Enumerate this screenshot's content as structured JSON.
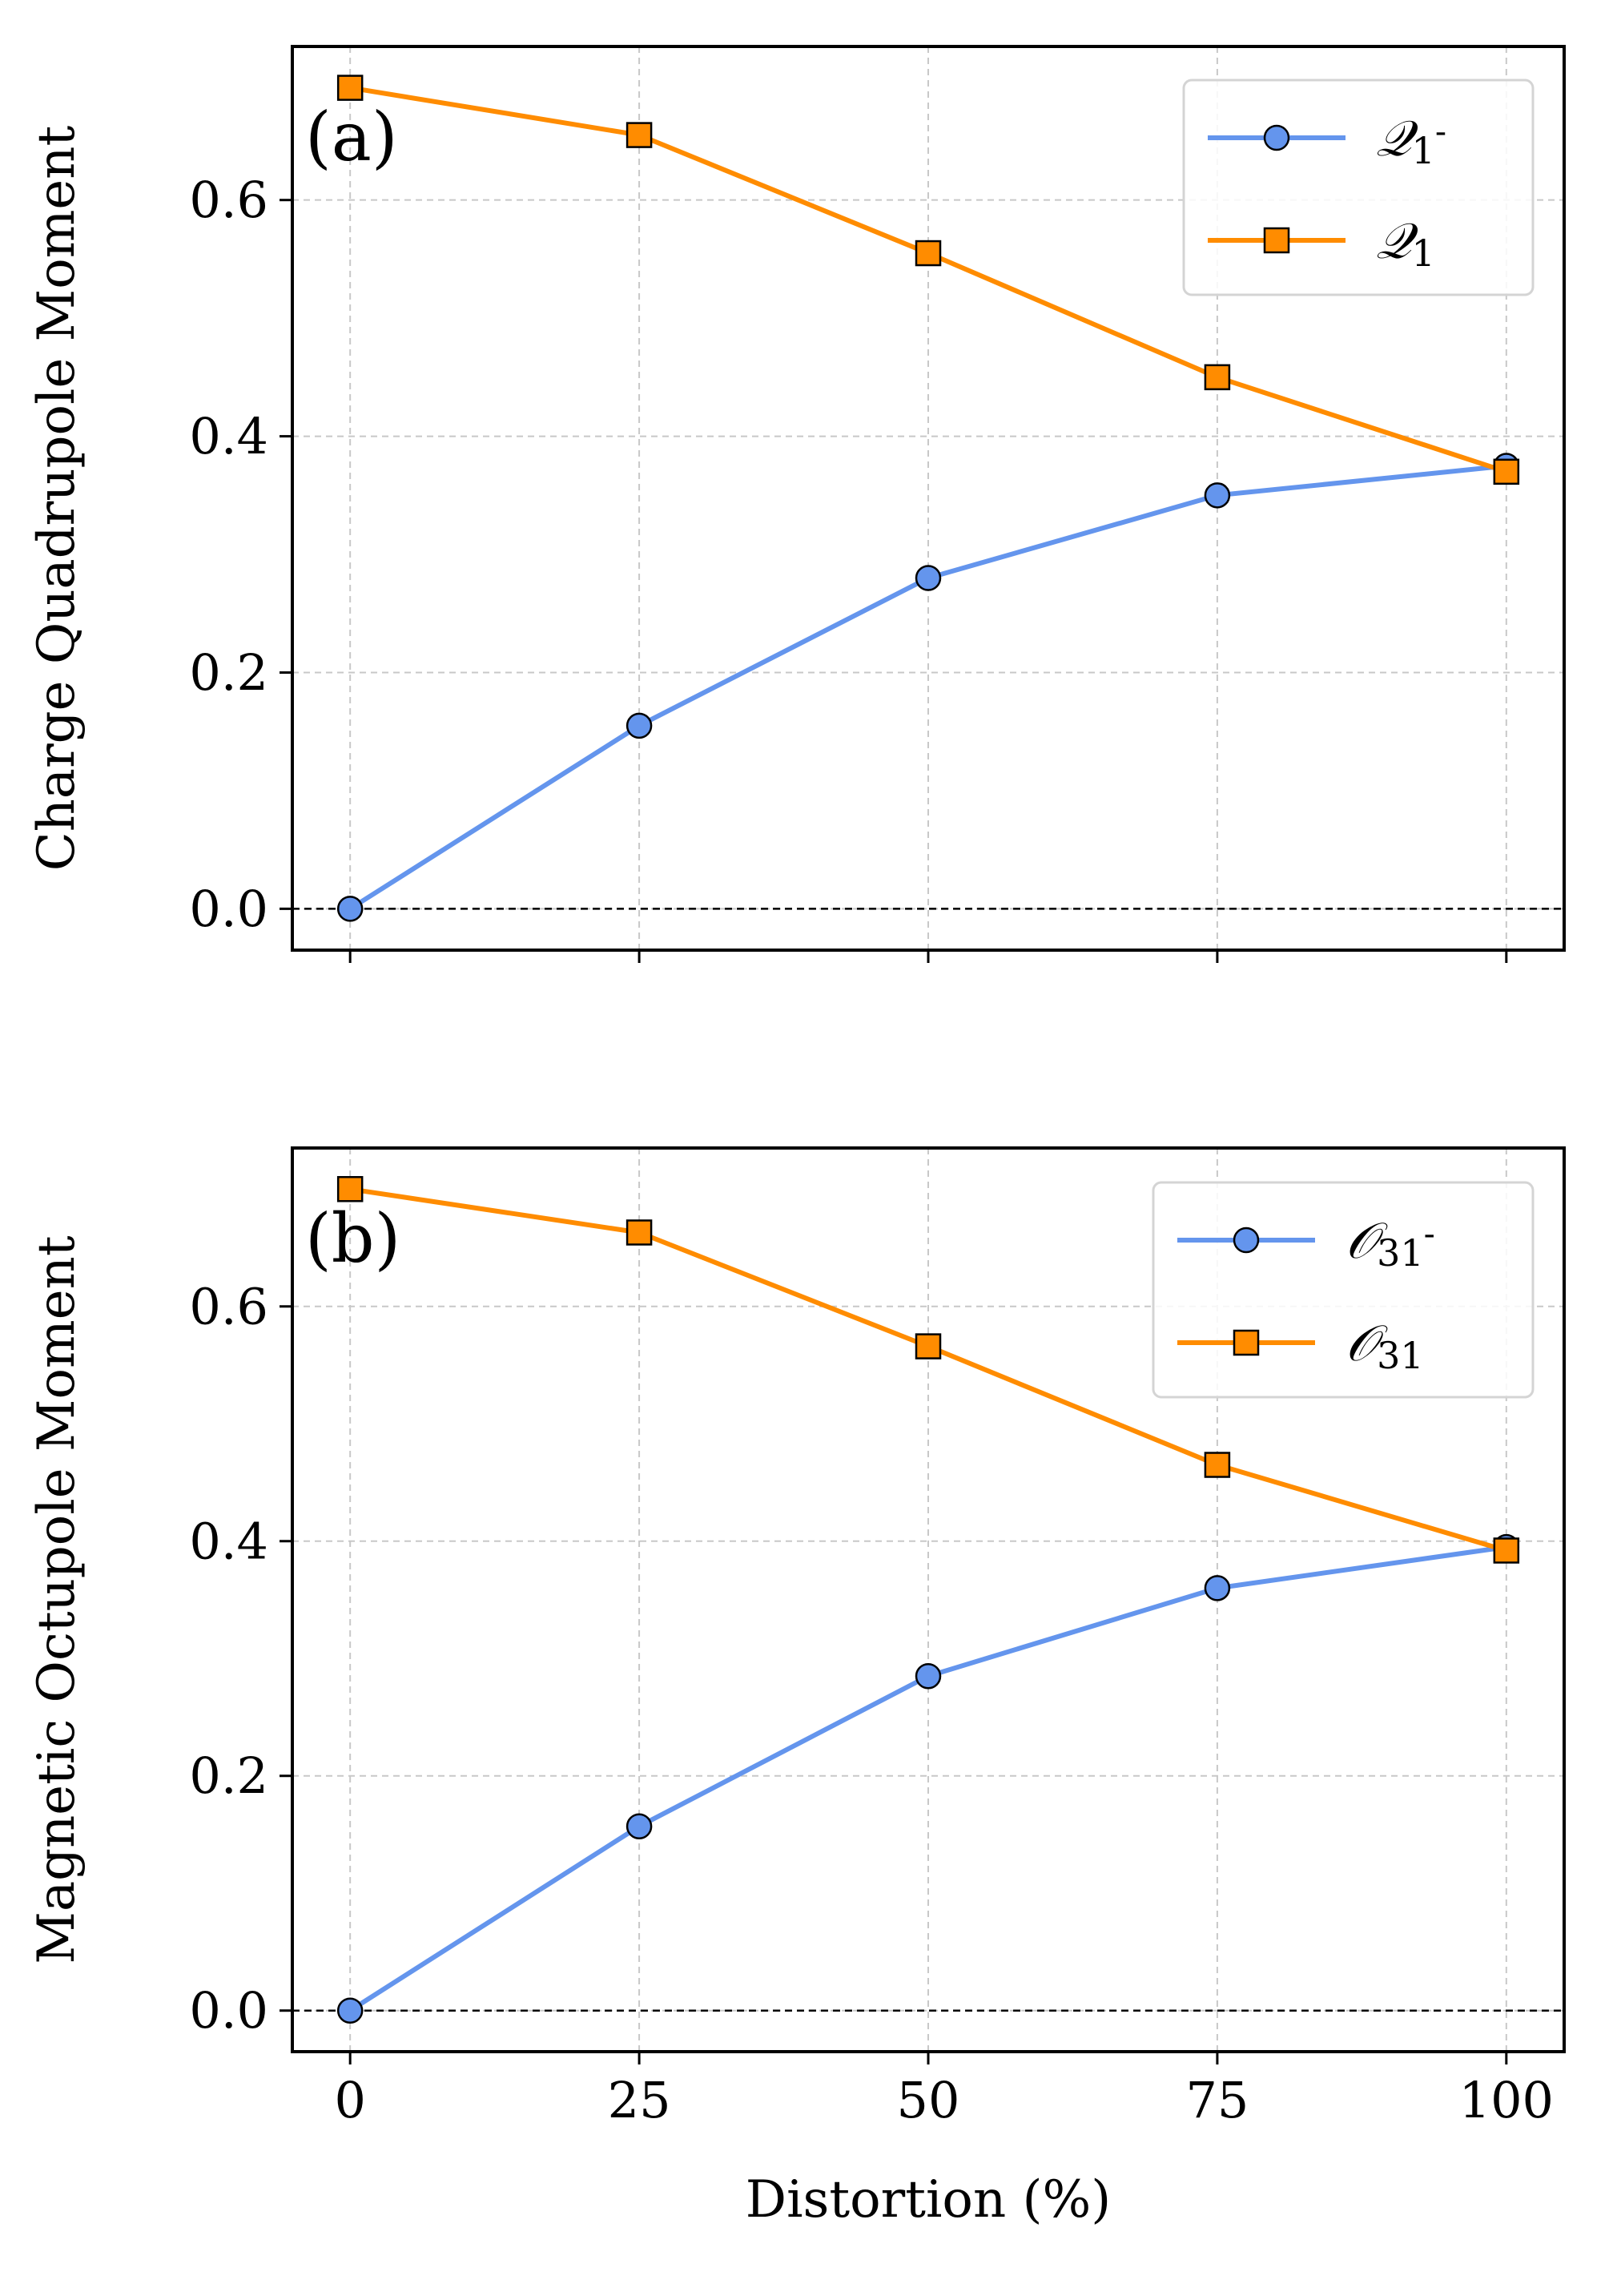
{
  "chart_data": [
    {
      "type": "line",
      "panel_label": "(a)",
      "title": "",
      "xlabel": "",
      "ylabel": "Charge Quadrupole Moment",
      "x": [
        0,
        25,
        50,
        75,
        100
      ],
      "xlim": [
        -5,
        105
      ],
      "ylim": [
        -0.035,
        0.73
      ],
      "xticks": [
        0,
        25,
        50,
        75,
        100
      ],
      "xtick_labels_visible": false,
      "yticks": [
        0.0,
        0.2,
        0.4,
        0.6
      ],
      "ytick_labels": [
        "0.0",
        "0.2",
        "0.4",
        "0.6"
      ],
      "grid": true,
      "zero_line": true,
      "legend_position": "top-right",
      "series": [
        {
          "name": "𝒬₁₋",
          "name_main": "𝒬",
          "name_sub": "1",
          "name_sup": "-",
          "color": "#6495ED",
          "marker": "circle",
          "values": [
            0.0,
            0.155,
            0.28,
            0.35,
            0.375
          ]
        },
        {
          "name": "𝒬₁",
          "name_main": "𝒬",
          "name_sub": "1",
          "name_sup": "",
          "color": "#FF8C00",
          "marker": "square",
          "values": [
            0.695,
            0.655,
            0.555,
            0.45,
            0.37
          ]
        }
      ]
    },
    {
      "type": "line",
      "panel_label": "(b)",
      "title": "",
      "xlabel": "Distortion (%)",
      "ylabel": "Magnetic Octupole Moment",
      "x": [
        0,
        25,
        50,
        75,
        100
      ],
      "xlim": [
        -5,
        105
      ],
      "ylim": [
        -0.035,
        0.735
      ],
      "xticks": [
        0,
        25,
        50,
        75,
        100
      ],
      "xtick_labels": [
        "0",
        "25",
        "50",
        "75",
        "100"
      ],
      "xtick_labels_visible": true,
      "yticks": [
        0.0,
        0.2,
        0.4,
        0.6
      ],
      "ytick_labels": [
        "0.0",
        "0.2",
        "0.4",
        "0.6"
      ],
      "grid": true,
      "zero_line": true,
      "legend_position": "top-right",
      "series": [
        {
          "name": "𝒪₃₁₋",
          "name_main": "𝒪",
          "name_sub": "31",
          "name_sup": "-",
          "color": "#6495ED",
          "marker": "circle",
          "values": [
            0.0,
            0.157,
            0.285,
            0.36,
            0.395
          ]
        },
        {
          "name": "𝒪₃₁",
          "name_main": "𝒪",
          "name_sub": "31",
          "name_sup": "",
          "color": "#FF8C00",
          "marker": "square",
          "values": [
            0.7,
            0.663,
            0.566,
            0.465,
            0.392
          ]
        }
      ]
    }
  ]
}
